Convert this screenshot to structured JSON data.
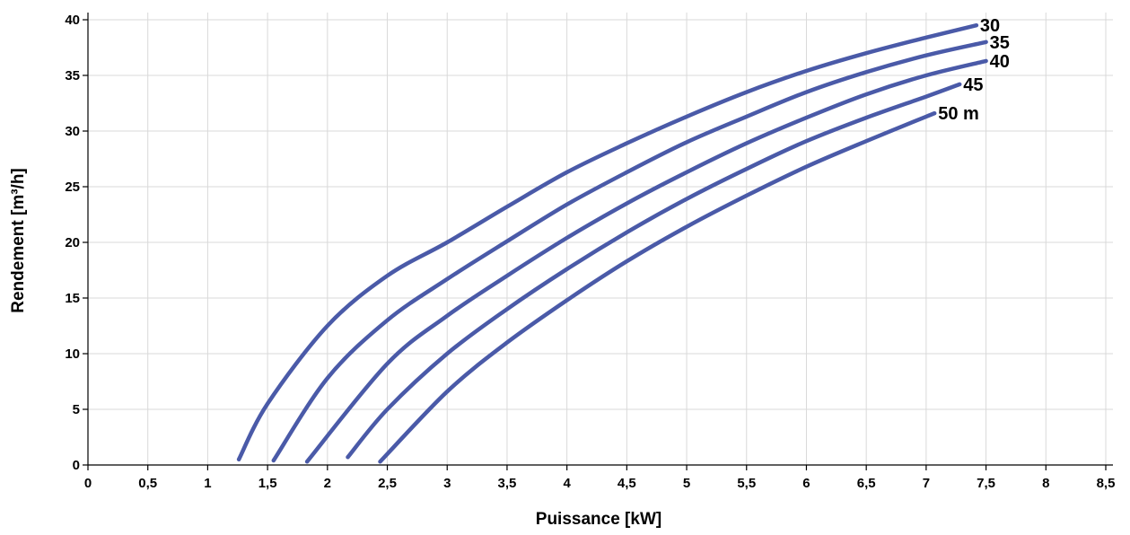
{
  "chart_data": {
    "type": "line",
    "xlabel": "Puissance  [kW]",
    "ylabel": "Rendement [m³/h]",
    "xlim": [
      0,
      8.5
    ],
    "ylim": [
      0,
      40
    ],
    "x_ticks": [
      0,
      0.5,
      1,
      1.5,
      2,
      2.5,
      3,
      3.5,
      4,
      4.5,
      5,
      5.5,
      6,
      6.5,
      7,
      7.5,
      8,
      8.5
    ],
    "x_tick_labels": [
      "0",
      "0,5",
      "1",
      "1,5",
      "2",
      "2,5",
      "3",
      "3,5",
      "4",
      "4,5",
      "5",
      "5,5",
      "6",
      "6,5",
      "7",
      "7,5",
      "8",
      "8,5"
    ],
    "y_ticks": [
      0,
      5,
      10,
      15,
      20,
      25,
      30,
      35,
      40
    ],
    "y_tick_labels": [
      "0",
      "5",
      "10",
      "15",
      "20",
      "25",
      "30",
      "35",
      "40"
    ],
    "grid": true,
    "line_color": "#4a5aa8",
    "series": [
      {
        "name": "30",
        "x": [
          1.26,
          1.5,
          2.0,
          2.5,
          3.0,
          3.5,
          4.0,
          4.5,
          5.0,
          5.5,
          6.0,
          6.5,
          7.0,
          7.42
        ],
        "y": [
          0.5,
          5.5,
          12.5,
          17.0,
          20.0,
          23.2,
          26.3,
          28.9,
          31.3,
          33.5,
          35.4,
          37.0,
          38.4,
          39.5
        ]
      },
      {
        "name": "35",
        "x": [
          1.55,
          2.0,
          2.5,
          3.0,
          3.5,
          4.0,
          4.5,
          5.0,
          5.5,
          6.0,
          6.5,
          7.0,
          7.5
        ],
        "y": [
          0.4,
          7.8,
          13.0,
          16.7,
          20.1,
          23.4,
          26.3,
          29.0,
          31.3,
          33.5,
          35.3,
          36.8,
          38.0
        ]
      },
      {
        "name": "40",
        "x": [
          1.83,
          2.5,
          3.0,
          3.5,
          4.0,
          4.5,
          5.0,
          5.5,
          6.0,
          6.5,
          7.0,
          7.5
        ],
        "y": [
          0.3,
          9.1,
          13.4,
          17.0,
          20.4,
          23.5,
          26.3,
          28.9,
          31.2,
          33.3,
          35.0,
          36.3
        ]
      },
      {
        "name": "45",
        "x": [
          2.17,
          2.5,
          3.0,
          3.5,
          4.0,
          4.5,
          5.0,
          5.5,
          6.0,
          6.5,
          7.0,
          7.28
        ],
        "y": [
          0.7,
          5.0,
          10.0,
          14.0,
          17.6,
          20.9,
          23.9,
          26.6,
          29.1,
          31.2,
          33.1,
          34.2
        ]
      },
      {
        "name": "50 m",
        "x": [
          2.44,
          3.0,
          3.5,
          4.0,
          4.5,
          5.0,
          5.5,
          6.0,
          6.5,
          7.0,
          7.07
        ],
        "y": [
          0.3,
          6.6,
          11.0,
          14.8,
          18.3,
          21.4,
          24.2,
          26.8,
          29.1,
          31.3,
          31.6
        ]
      }
    ]
  }
}
